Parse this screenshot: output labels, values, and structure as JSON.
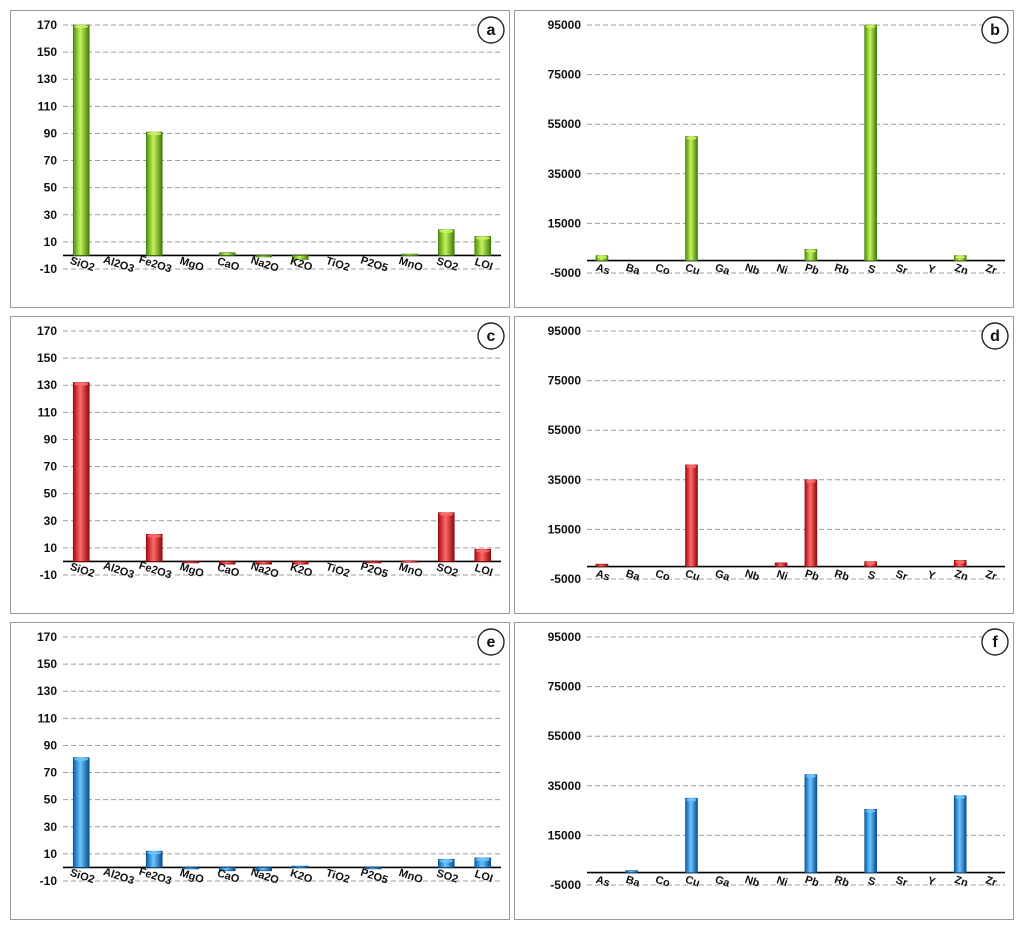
{
  "colors": {
    "green": "#8ed320",
    "red": "#e8141b",
    "blue": "#1f8fdc"
  },
  "chart_data": [
    {
      "id": "a",
      "type": "bar",
      "letter": "a",
      "color": "green",
      "categories": [
        "SiO2",
        "Al2O3",
        "Fe2O3",
        "MgO",
        "CaO",
        "Na2O",
        "K2O",
        "TiO2",
        "P2O5",
        "MnO",
        "SO2",
        "LOI"
      ],
      "values": [
        170,
        0,
        91,
        0,
        2,
        -1,
        -3,
        0,
        0,
        1,
        19,
        14
      ],
      "yticks": [
        -10,
        10,
        30,
        50,
        70,
        90,
        110,
        130,
        150,
        170
      ],
      "ylim": [
        -10,
        170
      ],
      "grid": true
    },
    {
      "id": "b",
      "type": "bar",
      "letter": "b",
      "color": "green",
      "categories": [
        "As",
        "Ba",
        "Co",
        "Cu",
        "Ga",
        "Nb",
        "Ni",
        "Pb",
        "Rb",
        "S",
        "Sr",
        "Y",
        "Zn",
        "Zr"
      ],
      "values": [
        2000,
        0,
        0,
        50000,
        0,
        0,
        0,
        4500,
        0,
        95000,
        0,
        0,
        2000,
        0
      ],
      "yticks": [
        -5000,
        15000,
        35000,
        55000,
        75000,
        95000
      ],
      "ylim": [
        -5000,
        95000
      ],
      "grid": true
    },
    {
      "id": "c",
      "type": "bar",
      "letter": "c",
      "color": "red",
      "categories": [
        "SiO2",
        "Al2O3",
        "Fe2O3",
        "MgO",
        "CaO",
        "Na2O",
        "K2O",
        "TiO2",
        "P2O5",
        "MnO",
        "SO2",
        "LOI"
      ],
      "values": [
        132,
        0,
        20,
        -0.5,
        -2,
        -2,
        -2,
        0,
        -0.5,
        0.5,
        36,
        9
      ],
      "yticks": [
        -10,
        10,
        30,
        50,
        70,
        90,
        110,
        130,
        150,
        170
      ],
      "ylim": [
        -10,
        170
      ],
      "grid": true
    },
    {
      "id": "d",
      "type": "bar",
      "letter": "d",
      "color": "red",
      "categories": [
        "As",
        "Ba",
        "Co",
        "Cu",
        "Ga",
        "Nb",
        "Ni",
        "Pb",
        "Rb",
        "S",
        "Sr",
        "Y",
        "Zn",
        "Zr"
      ],
      "values": [
        1000,
        0,
        0,
        41000,
        0,
        0,
        1500,
        35000,
        0,
        2000,
        0,
        0,
        2500,
        0
      ],
      "yticks": [
        -5000,
        15000,
        35000,
        55000,
        75000,
        95000
      ],
      "ylim": [
        -5000,
        95000
      ],
      "grid": true
    },
    {
      "id": "e",
      "type": "bar",
      "letter": "e",
      "color": "blue",
      "categories": [
        "SiO2",
        "Al2O3",
        "Fe2O3",
        "MgO",
        "CaO",
        "Na2O",
        "K2O",
        "TiO2",
        "P2O5",
        "MnO",
        "SO2",
        "LOI"
      ],
      "values": [
        81,
        0,
        12,
        -0.5,
        -2.5,
        -2.5,
        1,
        0,
        -0.5,
        0,
        6,
        7
      ],
      "yticks": [
        -10,
        10,
        30,
        50,
        70,
        90,
        110,
        130,
        150,
        170
      ],
      "ylim": [
        -10,
        170
      ],
      "grid": true
    },
    {
      "id": "f",
      "type": "bar",
      "letter": "f",
      "color": "blue",
      "categories": [
        "As",
        "Ba",
        "Co",
        "Cu",
        "Ga",
        "Nb",
        "Ni",
        "Pb",
        "Rb",
        "S",
        "Sr",
        "Y",
        "Zn",
        "Zr"
      ],
      "values": [
        0,
        800,
        0,
        30000,
        0,
        0,
        0,
        39500,
        0,
        25500,
        0,
        0,
        31000,
        0
      ],
      "yticks": [
        -5000,
        15000,
        35000,
        55000,
        75000,
        95000
      ],
      "ylim": [
        -5000,
        95000
      ],
      "grid": true
    }
  ]
}
